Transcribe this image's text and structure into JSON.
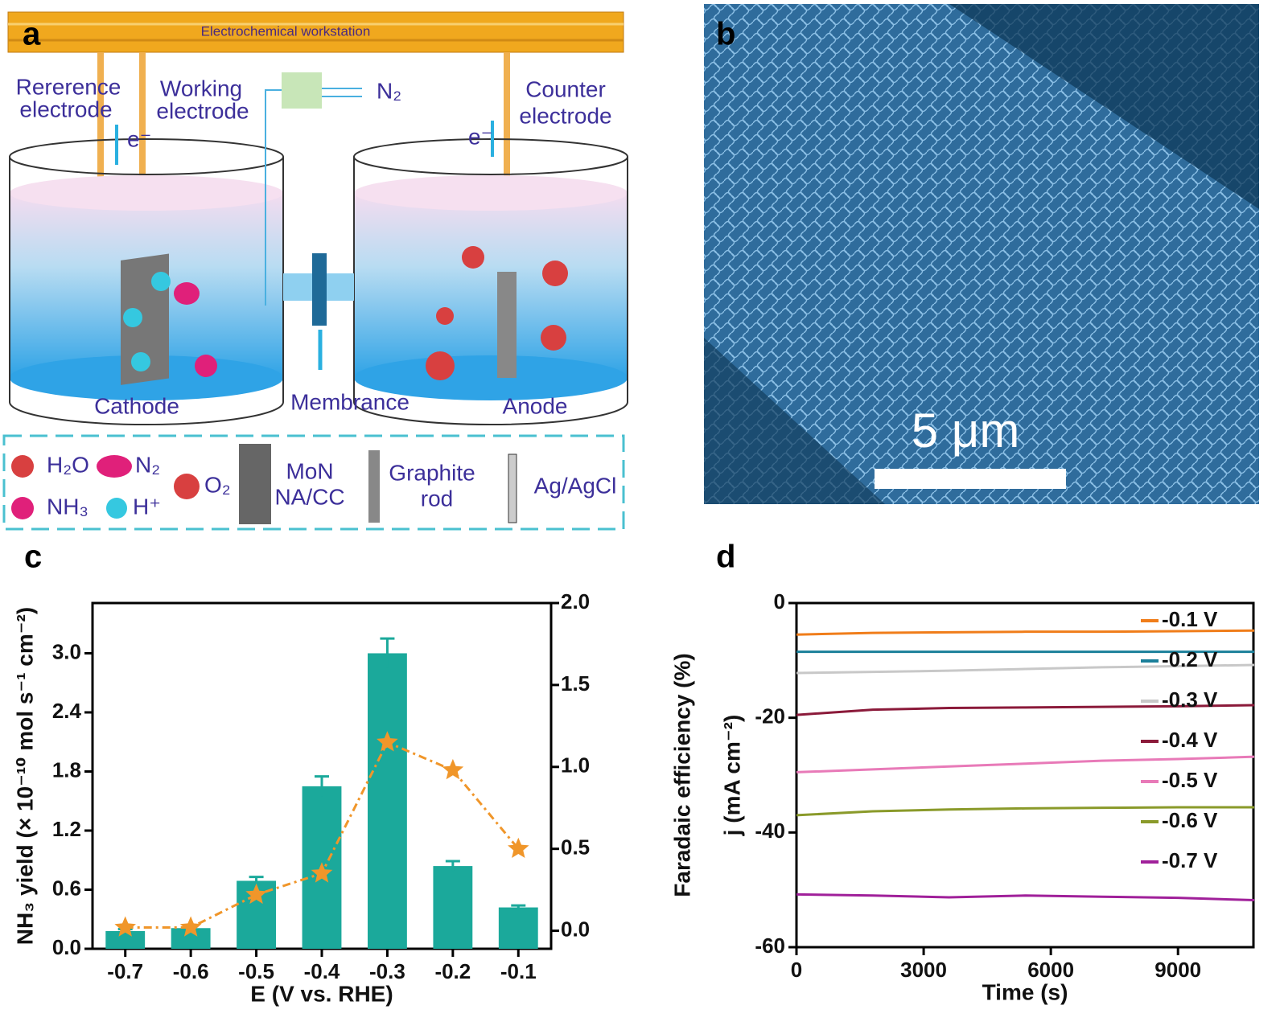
{
  "panel_labels": [
    "a",
    "b",
    "c",
    "d"
  ],
  "diagram": {
    "workstation": "Electrochemical workstation",
    "reference": [
      "Rererence",
      "electrode"
    ],
    "working": [
      "Working",
      "electrode"
    ],
    "gas": "N₂",
    "counter": [
      "Counter",
      "electrode"
    ],
    "electron_left": "e⁻",
    "electron_right": "e⁻",
    "cathode": "Cathode",
    "membrane": "Membrance",
    "anode": "Anode",
    "legend": {
      "h2o": "H₂O",
      "n2": "N₂",
      "o2": "O₂",
      "nh3": "NH₃",
      "h": "H⁺",
      "mon": [
        "MoN",
        "NA/CC"
      ],
      "graphite": [
        "Graphite",
        "rod"
      ],
      "agcl": "Ag/AgCl"
    }
  },
  "sem": {
    "scale_bar": "5 μm"
  },
  "chart_data": [
    {
      "type": "bar",
      "x_label": "E (V vs. RHE)",
      "y_label": "NH₃ yield (× 10⁻¹⁰ mol s⁻¹ cm⁻²)",
      "categories": [
        "-0.7",
        "-0.6",
        "-0.5",
        "-0.4",
        "-0.3",
        "-0.2",
        "-0.1"
      ],
      "series": [
        {
          "color": "#1ba99b",
          "values": [
            0.18,
            0.21,
            0.69,
            1.65,
            3.0,
            0.84,
            0.42
          ],
          "errors": [
            0.02,
            0.02,
            0.04,
            0.1,
            0.15,
            0.05,
            0.02
          ]
        },
        {
          "type": "line",
          "axis": "y2",
          "color": "#f0962a",
          "values": [
            0.02,
            0.02,
            0.22,
            0.35,
            1.15,
            0.98,
            0.5
          ]
        }
      ],
      "ylim": [
        0,
        3.51
      ],
      "yticks": [
        {
          "value": 0,
          "label": "0.0"
        },
        0.6,
        1.2,
        1.8,
        2.4,
        {
          "value": 3,
          "label": "3.0"
        }
      ],
      "y2lim": [
        -0.11,
        2.0
      ],
      "y2ticks": [
        {
          "value": 0,
          "label": "0.0"
        },
        0.5,
        {
          "value": 1,
          "label": "1.0"
        },
        1.5,
        {
          "value": 2,
          "label": "2.0"
        }
      ]
    },
    {
      "type": "line",
      "x_label": "Time (s)",
      "y_label": "j (mA cm⁻²)",
      "overlay_label": "Faradaic efficiency (%)",
      "legend": "upper right",
      "x": [
        0,
        1800,
        3600,
        5400,
        7200,
        9000,
        10800
      ],
      "series": [
        {
          "name": "-0.1 V",
          "color": "#f07d1a",
          "values": [
            -5.5,
            -5.2,
            -5.1,
            -5.0,
            -5.0,
            -4.9,
            -4.8
          ]
        },
        {
          "name": "-0.2 V",
          "color": "#1a7f9a",
          "values": [
            -8.5,
            -8.5,
            -8.5,
            -8.5,
            -8.5,
            -8.5,
            -8.5
          ]
        },
        {
          "name": "-0.3 V",
          "color": "#c8c8c8",
          "values": [
            -12.2,
            -12.0,
            -11.8,
            -11.5,
            -11.2,
            -11.0,
            -10.8
          ]
        },
        {
          "name": "-0.4 V",
          "color": "#8b1a3a",
          "values": [
            -19.5,
            -18.6,
            -18.3,
            -18.2,
            -18.1,
            -18.0,
            -17.8
          ]
        },
        {
          "name": "-0.5 V",
          "color": "#e87ab8",
          "values": [
            -29.5,
            -29.0,
            -28.5,
            -28.0,
            -27.5,
            -27.2,
            -26.8
          ]
        },
        {
          "name": "-0.6 V",
          "color": "#8a9a2a",
          "values": [
            -37.0,
            -36.3,
            -36.0,
            -35.8,
            -35.7,
            -35.6,
            -35.6
          ]
        },
        {
          "name": "-0.7 V",
          "color": "#a0209a",
          "values": [
            -50.8,
            -51.0,
            -51.3,
            -51.0,
            -51.2,
            -51.4,
            -51.8
          ]
        }
      ],
      "xlim": [
        0,
        10780
      ],
      "xticks": [
        0,
        3000,
        6000,
        9000
      ],
      "ylim": [
        -60,
        0
      ],
      "yticks": [
        0,
        -20,
        -40,
        -60
      ]
    }
  ]
}
